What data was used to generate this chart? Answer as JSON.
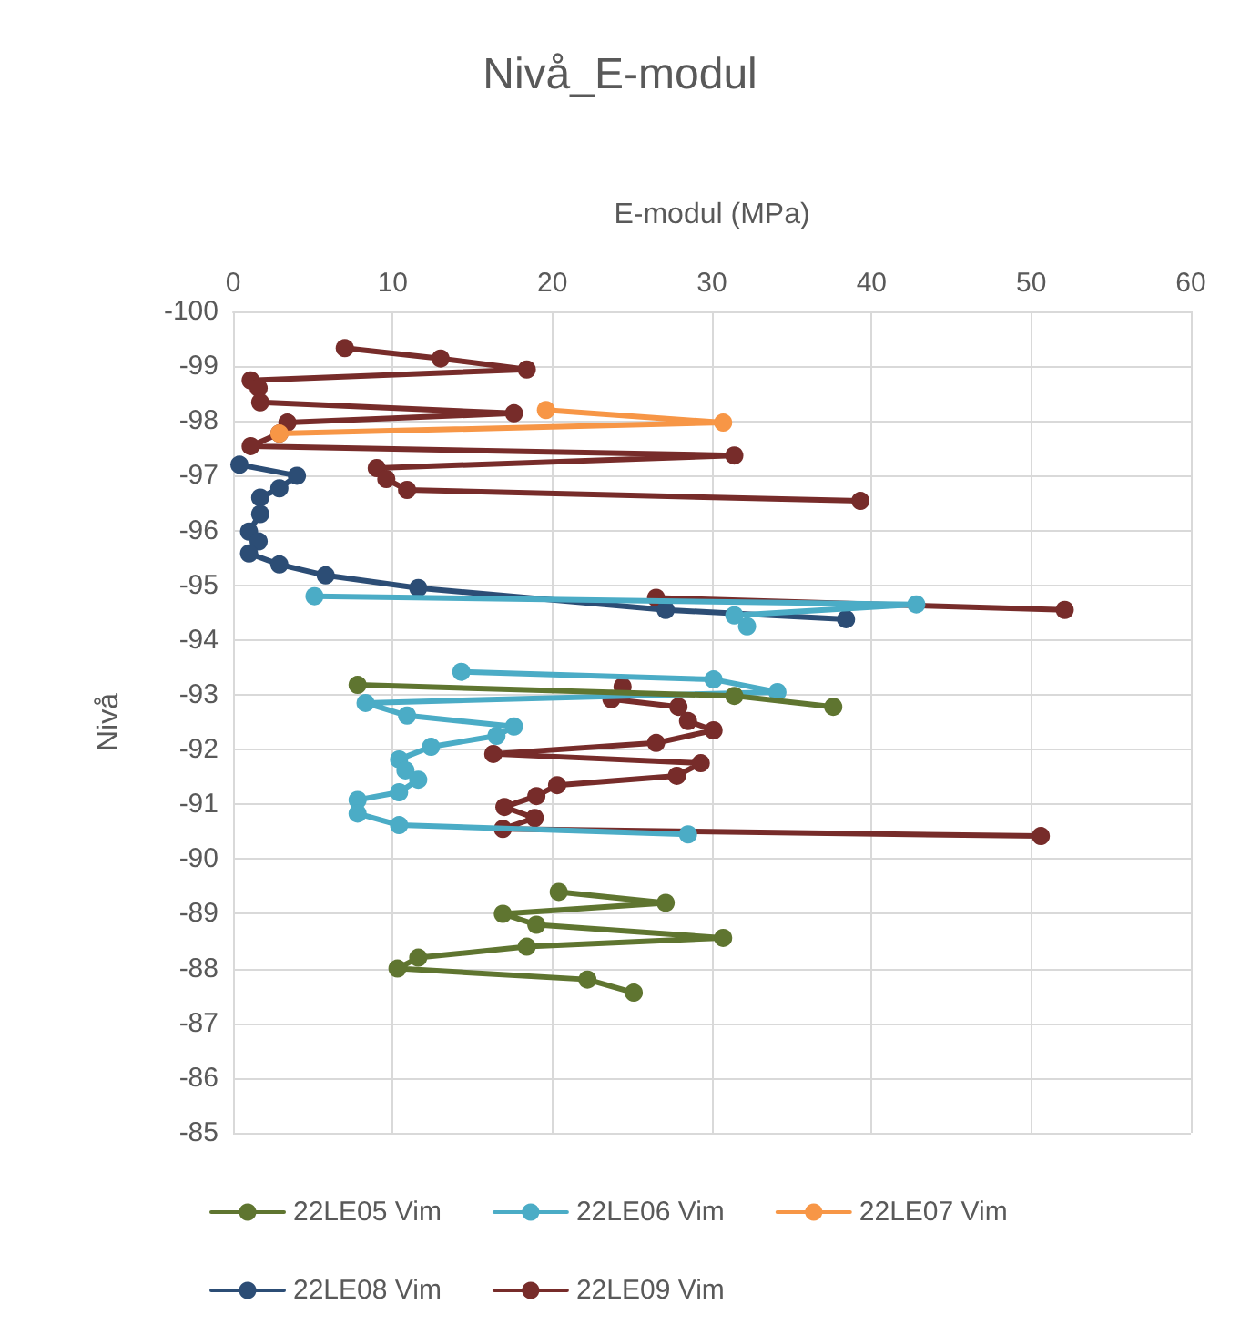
{
  "chart_data": {
    "type": "line",
    "title": "Nivå_E-modul",
    "xlabel": "E-modul (MPa)",
    "ylabel": "Nivå",
    "xlim": [
      0,
      60
    ],
    "xticks": [
      0,
      10,
      20,
      30,
      40,
      50,
      60
    ],
    "ylim": [
      -85,
      -100
    ],
    "yticks": [
      -100,
      -99,
      -98,
      -97,
      -96,
      -95,
      -94,
      -93,
      -92,
      -91,
      -90,
      -89,
      -88,
      -87,
      -86,
      -85
    ],
    "grid": true,
    "legend": "bottom",
    "marker": "circle",
    "line_style": "solid",
    "series": [
      {
        "name": "22LE05 Vim",
        "color": "#5f7530",
        "x": [
          7.8,
          31.4,
          37.6,
          null,
          20.4,
          27.1,
          16.9,
          19.0,
          30.7,
          18.4,
          11.6,
          10.3,
          22.2,
          25.1
        ],
        "values": [
          -93.18,
          -92.98,
          -92.78,
          null,
          -89.4,
          -89.2,
          -89.0,
          -88.8,
          -88.56,
          -88.4,
          -88.2,
          -88.0,
          -87.8,
          -87.56
        ]
      },
      {
        "name": "22LE06 Vim",
        "color": "#4bacc6",
        "x": [
          5.1,
          42.8,
          31.4,
          32.2,
          null,
          14.3,
          30.1,
          34.1,
          8.3,
          10.9,
          17.6,
          16.5,
          12.4,
          10.4,
          10.8,
          11.6,
          10.4,
          7.8,
          7.8,
          10.4,
          28.5
        ],
        "values": [
          -94.8,
          -94.65,
          -94.45,
          -94.25,
          null,
          -93.42,
          -93.28,
          -93.05,
          -92.85,
          -92.62,
          -92.42,
          -92.25,
          -92.05,
          -91.82,
          -91.62,
          -91.45,
          -91.22,
          -91.08,
          -90.83,
          -90.62,
          -90.45
        ]
      },
      {
        "name": "22LE07 Vim",
        "color": "#f79646",
        "x": [
          19.6,
          30.7,
          2.9
        ],
        "values": [
          -98.2,
          -97.97,
          -97.77
        ]
      },
      {
        "name": "22LE08 Vim",
        "color": "#2c4d75",
        "x": [
          0.4,
          4.0,
          2.9,
          1.7,
          1.7,
          1.0,
          1.6,
          1.0,
          2.9,
          5.8,
          11.6,
          27.1,
          38.4
        ],
        "values": [
          -97.2,
          -97.0,
          -96.77,
          -96.6,
          -96.3,
          -95.98,
          -95.8,
          -95.58,
          -95.38,
          -95.18,
          -94.95,
          -94.55,
          -94.38
        ]
      },
      {
        "name": "22LE09 Vim",
        "color": "#772c2a",
        "x": [
          7.0,
          13.0,
          18.4,
          1.1,
          1.6,
          1.7,
          17.6,
          3.4,
          2.9,
          1.1,
          31.4,
          9.0,
          9.6,
          10.9,
          39.3,
          null,
          26.5,
          52.1,
          null,
          24.4,
          23.7,
          27.9,
          28.5,
          30.1,
          26.5,
          16.3,
          29.3,
          27.8,
          20.3,
          19.0,
          17.0,
          18.9,
          16.9,
          50.6
        ],
        "values": [
          -99.33,
          -99.14,
          -98.94,
          -98.74,
          -98.6,
          -98.34,
          -98.14,
          -97.97,
          -97.77,
          -97.54,
          -97.37,
          -97.14,
          -96.94,
          -96.74,
          -96.54,
          null,
          -94.77,
          -94.55,
          null,
          -93.15,
          -92.92,
          -92.78,
          -92.52,
          -92.35,
          -92.12,
          -91.92,
          -91.75,
          -91.52,
          -91.35,
          -91.15,
          -90.95,
          -90.75,
          -90.55,
          -90.42
        ]
      }
    ]
  }
}
